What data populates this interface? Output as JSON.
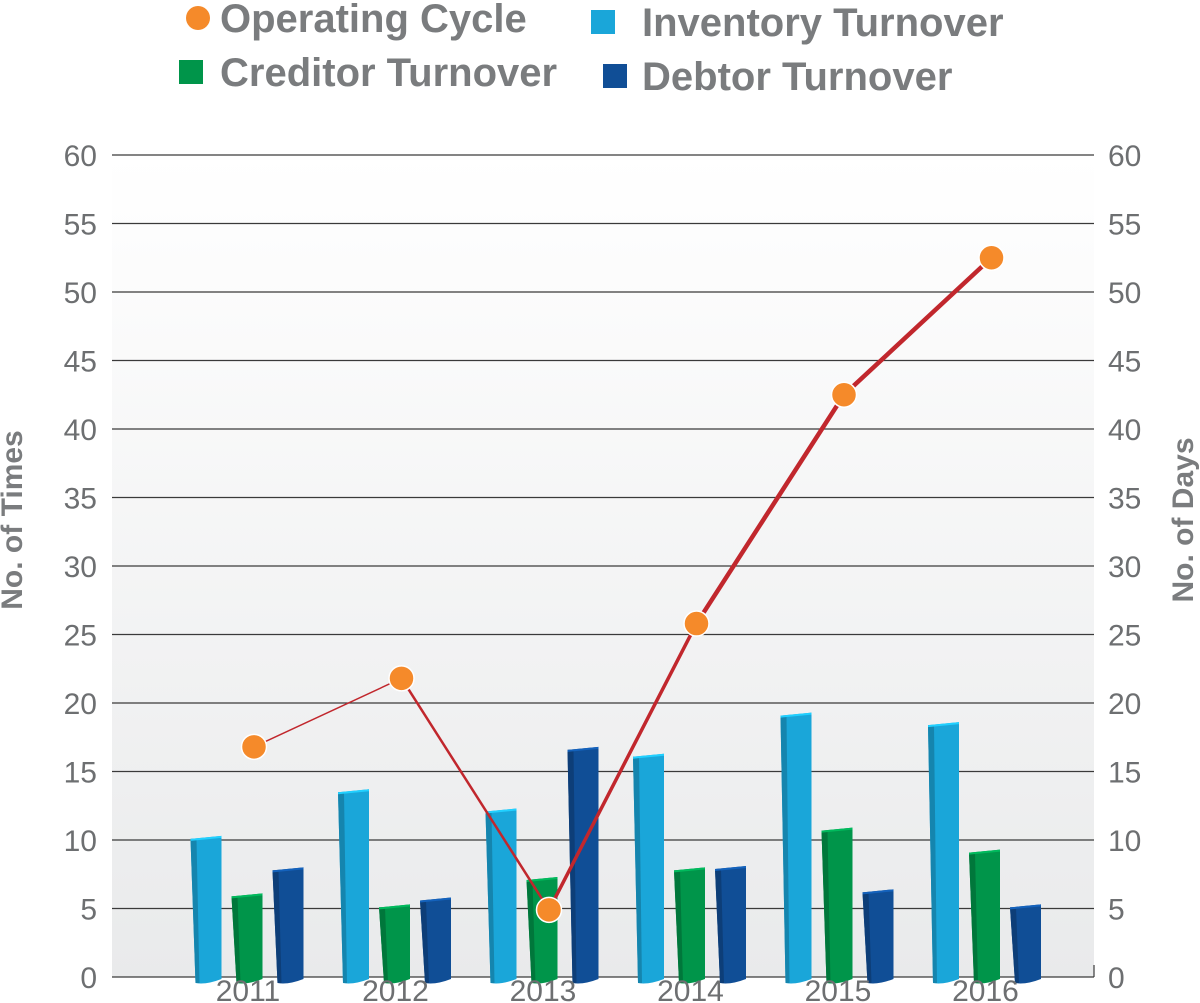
{
  "chart_data": {
    "type": "bar",
    "categories": [
      "2011",
      "2012",
      "2013",
      "2014",
      "2015",
      "2016"
    ],
    "series": [
      {
        "name": "Inventory Turnover",
        "kind": "bar",
        "axis": "left",
        "color": "#1aa6d9",
        "values": [
          10.3,
          13.7,
          12.3,
          16.3,
          19.3,
          18.6
        ]
      },
      {
        "name": "Creditor Turnover",
        "kind": "bar",
        "axis": "left",
        "color": "#00954a",
        "values": [
          6.1,
          5.3,
          7.3,
          8.0,
          10.9,
          9.3
        ]
      },
      {
        "name": "Debtor Turnover",
        "kind": "bar",
        "axis": "left",
        "color": "#104e96",
        "values": [
          8.0,
          5.8,
          16.8,
          8.1,
          6.4,
          5.3
        ]
      },
      {
        "name": "Operating Cycle",
        "kind": "line",
        "axis": "right",
        "color": "#f58a2a",
        "line_color": "#c1272d",
        "values": [
          16.8,
          21.8,
          4.9,
          25.8,
          42.5,
          52.5
        ]
      }
    ],
    "title": "",
    "xlabel": "",
    "ylabel": "No. of Times",
    "y2label": "No. of Days",
    "ylim": [
      0,
      60
    ],
    "y2lim": [
      0,
      60
    ],
    "yticks": [
      0,
      5,
      10,
      15,
      20,
      25,
      30,
      35,
      40,
      45,
      50,
      55,
      60
    ],
    "grid": true,
    "legend_position": "top"
  }
}
